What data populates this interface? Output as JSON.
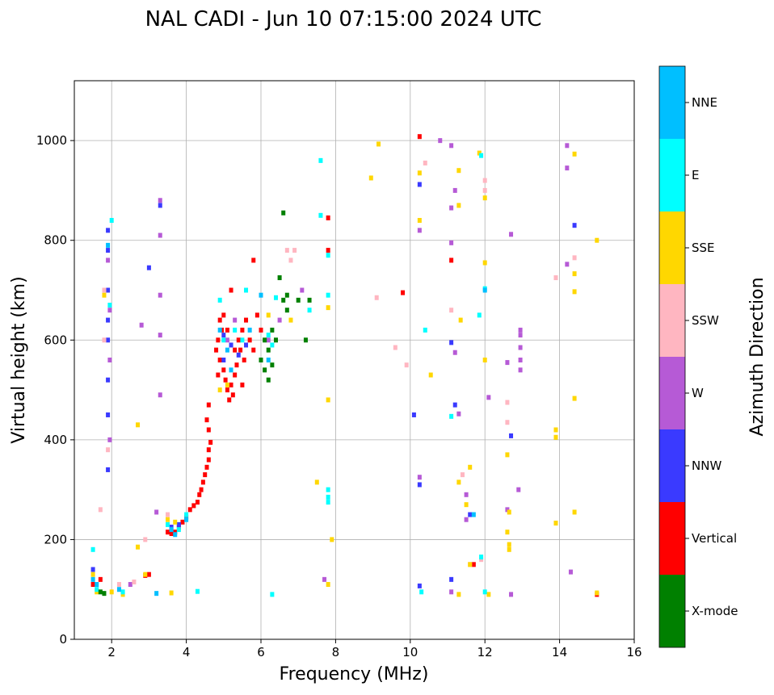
{
  "chart_data": {
    "type": "scatter",
    "title": "NAL CADI - Jun 10 07:15:00 2024 UTC",
    "xlabel": "Frequency (MHz)",
    "ylabel": "Virtual height (km)",
    "xlim": [
      1,
      16
    ],
    "ylim": [
      0,
      1120
    ],
    "xticks": [
      2,
      4,
      6,
      8,
      10,
      12,
      14,
      16
    ],
    "yticks": [
      0,
      200,
      400,
      600,
      800,
      1000
    ],
    "grid": true,
    "colorbar": {
      "label": "Azimuth Direction",
      "categories": [
        {
          "name": "X-mode",
          "color": "#008000"
        },
        {
          "name": "Vertical",
          "color": "#ff0000"
        },
        {
          "name": "NNW",
          "color": "#3a3aff"
        },
        {
          "name": "W",
          "color": "#b65ad6"
        },
        {
          "name": "SSW",
          "color": "#ffb6c1"
        },
        {
          "name": "SSE",
          "color": "#ffd700"
        },
        {
          "name": "E",
          "color": "#00ffff"
        },
        {
          "name": "NNE",
          "color": "#00bfff"
        }
      ]
    },
    "series": [
      {
        "name": "Vertical",
        "points": [
          [
            3.5,
            215
          ],
          [
            3.6,
            212
          ],
          [
            3.7,
            215
          ],
          [
            3.8,
            225
          ],
          [
            3.9,
            235
          ],
          [
            4.0,
            245
          ],
          [
            4.1,
            260
          ],
          [
            4.2,
            268
          ],
          [
            4.3,
            275
          ],
          [
            4.35,
            290
          ],
          [
            4.4,
            300
          ],
          [
            4.45,
            315
          ],
          [
            4.5,
            330
          ],
          [
            4.55,
            345
          ],
          [
            4.6,
            360
          ],
          [
            4.6,
            380
          ],
          [
            4.65,
            395
          ],
          [
            4.6,
            420
          ],
          [
            4.55,
            440
          ],
          [
            4.6,
            470
          ],
          [
            4.8,
            580
          ],
          [
            4.85,
            600
          ],
          [
            4.9,
            560
          ],
          [
            4.95,
            620
          ],
          [
            5.0,
            540
          ],
          [
            5.05,
            520
          ],
          [
            5.1,
            500
          ],
          [
            5.15,
            480
          ],
          [
            5.2,
            510
          ],
          [
            5.25,
            490
          ],
          [
            5.3,
            530
          ],
          [
            5.35,
            550
          ],
          [
            5.4,
            600
          ],
          [
            5.45,
            580
          ],
          [
            5.5,
            620
          ],
          [
            5.55,
            560
          ],
          [
            5.6,
            640
          ],
          [
            5.7,
            600
          ],
          [
            5.8,
            580
          ],
          [
            5.9,
            650
          ],
          [
            6.0,
            620
          ],
          [
            5.0,
            650
          ],
          [
            5.2,
            700
          ],
          [
            5.8,
            760
          ],
          [
            4.85,
            530
          ],
          [
            4.9,
            640
          ],
          [
            5.1,
            620
          ],
          [
            5.3,
            580
          ],
          [
            5.5,
            510
          ],
          [
            3.0,
            130
          ],
          [
            2.9,
            128
          ],
          [
            1.5,
            110
          ],
          [
            1.7,
            120
          ],
          [
            11.1,
            760
          ],
          [
            9.8,
            695
          ],
          [
            10.25,
            1008
          ],
          [
            15.0,
            90
          ],
          [
            11.7,
            150
          ],
          [
            7.8,
            845
          ],
          [
            7.8,
            780
          ]
        ]
      },
      {
        "name": "NNW",
        "points": [
          [
            1.5,
            140
          ],
          [
            1.9,
            820
          ],
          [
            1.9,
            780
          ],
          [
            1.9,
            700
          ],
          [
            1.9,
            640
          ],
          [
            1.9,
            600
          ],
          [
            1.9,
            520
          ],
          [
            1.9,
            450
          ],
          [
            1.9,
            340
          ],
          [
            3.3,
            870
          ],
          [
            3.0,
            745
          ],
          [
            5.0,
            610
          ],
          [
            5.2,
            590
          ],
          [
            5.4,
            570
          ],
          [
            5.6,
            590
          ],
          [
            5.0,
            560
          ],
          [
            10.1,
            450
          ],
          [
            10.25,
            912
          ],
          [
            10.25,
            310
          ],
          [
            10.25,
            107
          ],
          [
            11.1,
            595
          ],
          [
            11.6,
            250
          ],
          [
            12.7,
            408
          ],
          [
            11.1,
            120
          ],
          [
            11.2,
            470
          ],
          [
            14.4,
            830
          ],
          [
            3.6,
            225
          ],
          [
            3.8,
            230
          ]
        ]
      },
      {
        "name": "W",
        "points": [
          [
            1.95,
            400
          ],
          [
            1.95,
            560
          ],
          [
            1.95,
            660
          ],
          [
            1.9,
            760
          ],
          [
            3.3,
            880
          ],
          [
            3.3,
            810
          ],
          [
            3.3,
            690
          ],
          [
            3.3,
            610
          ],
          [
            3.3,
            490
          ],
          [
            3.2,
            255
          ],
          [
            2.8,
            630
          ],
          [
            2.5,
            110
          ],
          [
            5.1,
            600
          ],
          [
            5.3,
            640
          ],
          [
            6.2,
            600
          ],
          [
            6.5,
            640
          ],
          [
            7.1,
            700
          ],
          [
            7.7,
            120
          ],
          [
            10.8,
            1000
          ],
          [
            11.1,
            990
          ],
          [
            11.1,
            865
          ],
          [
            11.1,
            795
          ],
          [
            11.2,
            900
          ],
          [
            11.2,
            575
          ],
          [
            11.5,
            290
          ],
          [
            11.5,
            240
          ],
          [
            11.1,
            95
          ],
          [
            12.1,
            485
          ],
          [
            12.6,
            555
          ],
          [
            12.7,
            90
          ],
          [
            12.7,
            812
          ],
          [
            12.9,
            300
          ],
          [
            12.95,
            620
          ],
          [
            12.95,
            610
          ],
          [
            12.95,
            585
          ],
          [
            12.95,
            560
          ],
          [
            12.95,
            540
          ],
          [
            14.2,
            990
          ],
          [
            14.2,
            945
          ],
          [
            14.2,
            752
          ],
          [
            14.3,
            135
          ],
          [
            12.6,
            260
          ],
          [
            10.25,
            820
          ],
          [
            10.25,
            325
          ],
          [
            11.3,
            452
          ]
        ]
      },
      {
        "name": "SSW",
        "points": [
          [
            1.8,
            700
          ],
          [
            1.8,
            600
          ],
          [
            1.9,
            380
          ],
          [
            1.7,
            260
          ],
          [
            2.2,
            110
          ],
          [
            2.6,
            115
          ],
          [
            6.7,
            780
          ],
          [
            6.8,
            760
          ],
          [
            6.9,
            780
          ],
          [
            9.1,
            685
          ],
          [
            9.6,
            585
          ],
          [
            9.9,
            550
          ],
          [
            10.4,
            955
          ],
          [
            11.1,
            660
          ],
          [
            11.4,
            330
          ],
          [
            11.6,
            150
          ],
          [
            12.0,
            920
          ],
          [
            12.0,
            900
          ],
          [
            12.6,
            435
          ],
          [
            12.6,
            475
          ],
          [
            13.9,
            725
          ],
          [
            14.4,
            765
          ],
          [
            11.9,
            160
          ],
          [
            3.5,
            250
          ],
          [
            2.9,
            200
          ]
        ]
      },
      {
        "name": "SSE",
        "points": [
          [
            1.5,
            130
          ],
          [
            1.6,
            95
          ],
          [
            1.8,
            690
          ],
          [
            2.0,
            95
          ],
          [
            2.3,
            90
          ],
          [
            2.7,
            430
          ],
          [
            2.7,
            185
          ],
          [
            2.9,
            130
          ],
          [
            3.6,
            93
          ],
          [
            3.5,
            240
          ],
          [
            3.7,
            235
          ],
          [
            4.9,
            500
          ],
          [
            5.1,
            510
          ],
          [
            6.2,
            650
          ],
          [
            6.8,
            640
          ],
          [
            7.5,
            315
          ],
          [
            7.8,
            665
          ],
          [
            7.8,
            480
          ],
          [
            7.8,
            110
          ],
          [
            7.9,
            200
          ],
          [
            8.95,
            925
          ],
          [
            9.15,
            993
          ],
          [
            10.25,
            935
          ],
          [
            10.25,
            840
          ],
          [
            10.55,
            530
          ],
          [
            11.3,
            940
          ],
          [
            11.3,
            870
          ],
          [
            11.35,
            640
          ],
          [
            11.3,
            315
          ],
          [
            11.3,
            90
          ],
          [
            11.5,
            270
          ],
          [
            11.6,
            345
          ],
          [
            11.6,
            150
          ],
          [
            11.85,
            975
          ],
          [
            12.0,
            885
          ],
          [
            12.0,
            755
          ],
          [
            12.0,
            560
          ],
          [
            12.1,
            90
          ],
          [
            12.6,
            370
          ],
          [
            12.6,
            215
          ],
          [
            12.65,
            180
          ],
          [
            12.65,
            190
          ],
          [
            12.65,
            255
          ],
          [
            13.9,
            420
          ],
          [
            13.9,
            405
          ],
          [
            13.9,
            233
          ],
          [
            14.4,
            973
          ],
          [
            14.4,
            733
          ],
          [
            14.4,
            697
          ],
          [
            14.4,
            483
          ],
          [
            14.4,
            255
          ],
          [
            15.0,
            800
          ],
          [
            15.0,
            93
          ]
        ]
      },
      {
        "name": "E",
        "points": [
          [
            1.5,
            180
          ],
          [
            1.6,
            100
          ],
          [
            2.0,
            840
          ],
          [
            1.95,
            670
          ],
          [
            2.3,
            95
          ],
          [
            3.5,
            230
          ],
          [
            3.8,
            220
          ],
          [
            4.0,
            250
          ],
          [
            4.3,
            96
          ],
          [
            4.9,
            680
          ],
          [
            5.0,
            600
          ],
          [
            5.3,
            620
          ],
          [
            5.5,
            600
          ],
          [
            5.6,
            700
          ],
          [
            6.2,
            610
          ],
          [
            6.3,
            590
          ],
          [
            6.4,
            685
          ],
          [
            6.3,
            90
          ],
          [
            7.3,
            660
          ],
          [
            7.6,
            960
          ],
          [
            7.6,
            850
          ],
          [
            7.8,
            770
          ],
          [
            7.8,
            690
          ],
          [
            7.8,
            300
          ],
          [
            7.8,
            285
          ],
          [
            7.8,
            275
          ],
          [
            10.3,
            95
          ],
          [
            10.4,
            620
          ],
          [
            11.1,
            447
          ],
          [
            11.85,
            650
          ],
          [
            11.9,
            970
          ],
          [
            11.9,
            165
          ],
          [
            12.0,
            703
          ],
          [
            12.0,
            95
          ]
        ]
      },
      {
        "name": "NNE",
        "points": [
          [
            1.5,
            120
          ],
          [
            1.6,
            110
          ],
          [
            1.9,
            790
          ],
          [
            2.2,
            100
          ],
          [
            3.2,
            92
          ],
          [
            3.6,
            220
          ],
          [
            3.7,
            210
          ],
          [
            4.0,
            240
          ],
          [
            4.9,
            620
          ],
          [
            5.1,
            580
          ],
          [
            5.2,
            540
          ],
          [
            5.7,
            620
          ],
          [
            6.0,
            690
          ],
          [
            6.2,
            560
          ],
          [
            12.0,
            700
          ],
          [
            11.7,
            250
          ]
        ]
      },
      {
        "name": "X-mode",
        "points": [
          [
            6.0,
            560
          ],
          [
            6.1,
            540
          ],
          [
            6.2,
            580
          ],
          [
            6.3,
            620
          ],
          [
            6.3,
            550
          ],
          [
            6.4,
            600
          ],
          [
            6.5,
            725
          ],
          [
            6.6,
            680
          ],
          [
            6.6,
            855
          ],
          [
            6.7,
            690
          ],
          [
            6.7,
            660
          ],
          [
            7.0,
            680
          ],
          [
            7.2,
            600
          ],
          [
            6.1,
            600
          ],
          [
            6.2,
            520
          ],
          [
            1.7,
            95
          ],
          [
            1.8,
            92
          ],
          [
            7.3,
            680
          ]
        ]
      }
    ]
  }
}
